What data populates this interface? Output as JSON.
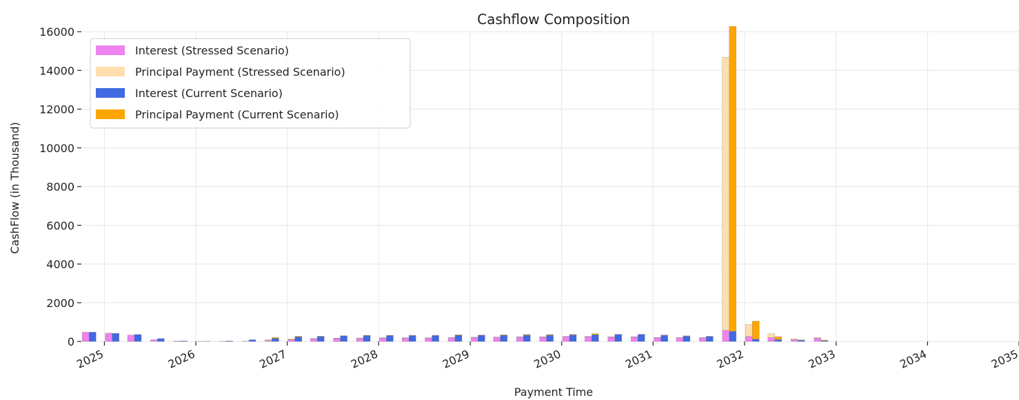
{
  "chart_data": {
    "type": "bar",
    "stacked": true,
    "title": "Cashflow Composition",
    "xlabel": "Payment Time",
    "ylabel": "CashFlow (in Thousand)",
    "ylim": [
      0,
      16000
    ],
    "yticks": [
      0,
      2000,
      4000,
      6000,
      8000,
      10000,
      12000,
      14000,
      16000
    ],
    "xlim": [
      "2024-10-01",
      "2035-01-01"
    ],
    "xticks": [
      "2025",
      "2026",
      "2027",
      "2028",
      "2029",
      "2030",
      "2031",
      "2032",
      "2033",
      "2034",
      "2035"
    ],
    "grid": true,
    "legend_position": "top-left",
    "colors": {
      "interest_stressed": "#ee82ee",
      "principal_stressed": "#ffdead",
      "interest_current": "#4169e1",
      "principal_current": "#ffa500",
      "grid": "#e6e6e6",
      "axis": "#222222"
    },
    "legend": [
      "Interest (Stressed Scenario)",
      "Principal Payment (Stressed Scenario)",
      "Interest (Current Scenario)",
      "Principal Payment (Current Scenario)"
    ],
    "x": [
      "2024-11-01",
      "2025-02-01",
      "2025-05-01",
      "2025-08-01",
      "2025-11-01",
      "2026-02-01",
      "2026-05-01",
      "2026-08-01",
      "2026-11-01",
      "2027-02-01",
      "2027-05-01",
      "2027-08-01",
      "2027-11-01",
      "2028-02-01",
      "2028-05-01",
      "2028-08-01",
      "2028-11-01",
      "2029-02-01",
      "2029-05-01",
      "2029-08-01",
      "2029-11-01",
      "2030-02-01",
      "2030-05-01",
      "2030-08-01",
      "2030-11-01",
      "2031-02-01",
      "2031-05-01",
      "2031-08-01",
      "2031-11-01",
      "2032-02-01",
      "2032-05-01",
      "2032-08-01",
      "2032-11-01"
    ],
    "series": [
      {
        "name": "Interest (Stressed Scenario)",
        "group": "stressed",
        "values": [
          480,
          430,
          330,
          90,
          20,
          5,
          5,
          10,
          50,
          100,
          140,
          160,
          170,
          180,
          180,
          180,
          190,
          210,
          220,
          230,
          230,
          250,
          250,
          230,
          230,
          200,
          190,
          190,
          580,
          260,
          200,
          100,
          170
        ]
      },
      {
        "name": "Principal Payment (Stressed Scenario)",
        "group": "stressed",
        "values": [
          0,
          0,
          0,
          0,
          0,
          0,
          0,
          0,
          50,
          30,
          20,
          10,
          10,
          10,
          10,
          10,
          10,
          10,
          10,
          10,
          10,
          10,
          10,
          10,
          10,
          10,
          10,
          10,
          14100,
          620,
          200,
          40,
          40
        ]
      },
      {
        "name": "Interest (Current Scenario)",
        "group": "current",
        "values": [
          480,
          420,
          360,
          150,
          30,
          10,
          30,
          90,
          160,
          240,
          260,
          290,
          310,
          310,
          310,
          310,
          320,
          320,
          320,
          330,
          330,
          340,
          350,
          360,
          360,
          320,
          280,
          260,
          520,
          120,
          100,
          60,
          40
        ]
      },
      {
        "name": "Principal Payment (Current Scenario)",
        "group": "current",
        "values": [
          0,
          0,
          0,
          0,
          0,
          0,
          0,
          0,
          50,
          30,
          10,
          10,
          10,
          10,
          10,
          10,
          30,
          10,
          30,
          30,
          30,
          30,
          50,
          10,
          10,
          10,
          10,
          10,
          15750,
          930,
          150,
          20,
          30
        ]
      }
    ]
  }
}
